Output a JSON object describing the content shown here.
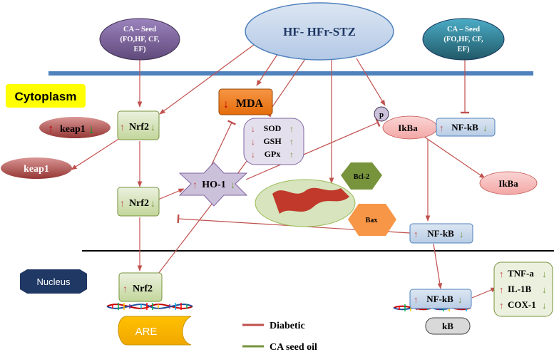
{
  "colors": {
    "diabetic": "#c0504d",
    "ca_seed_oil": "#77933c",
    "membrane": "#4f81bd",
    "nuclear_line": "#000000",
    "nrf2_box": "#d7e4bd",
    "mda_box": "#e46c0a",
    "ikba_ellipse": "#f2b8b7",
    "nfkb_box": "#c6d9f1",
    "seed_left": "#8064a2",
    "seed_right": "#31859c",
    "hf_ellipse": "#c6d9f1",
    "keap1": "#c0504d",
    "cytoplasm_label": "#ffff00",
    "nucleus_label": "#1f3864",
    "ho1_star": "#ccc1da",
    "bcl2": "#77933c",
    "bax": "#f79646"
  },
  "nodes": {
    "hf_stz": "HF- HFr-STZ",
    "ca_seed_left": {
      "line1": "CA – Seed",
      "line2": "(FO,HF, CF,",
      "line3": "EF)"
    },
    "ca_seed_right": {
      "line1": "CA – Seed",
      "line2": "(FO,HF, CF,",
      "line3": "EF)"
    },
    "cytoplasm": "Cytoplasm",
    "nucleus": "Nucleus",
    "keap1_up": "keap1",
    "keap1": "keap1",
    "nrf2_top": "Nrf2",
    "nrf2_mid": "Nrf2",
    "nrf2_nucleus": "Nrf2",
    "mda": "MDA",
    "sod": "SOD",
    "gsh": "GSH",
    "gpx": "GPx",
    "ho1": "HO-1",
    "p": "p",
    "ikba_top": "IkBa",
    "ikba_right": "IkBa",
    "nfkb_top": "NF-kB",
    "nfkb_mid": "NF-kB",
    "nfkb_nucleus": "NF-kB",
    "bcl2": "Bcl-2",
    "bax": "Bax",
    "are": "ARE",
    "kb": "kB",
    "tnfa": "TNF-a",
    "il1b": "IL-1B",
    "cox1": "COX-1"
  },
  "legend": {
    "diabetic": "Diabetic",
    "ca_seed_oil": "CA seed oil"
  },
  "arrows": {
    "up": "↑",
    "down": "↓"
  }
}
